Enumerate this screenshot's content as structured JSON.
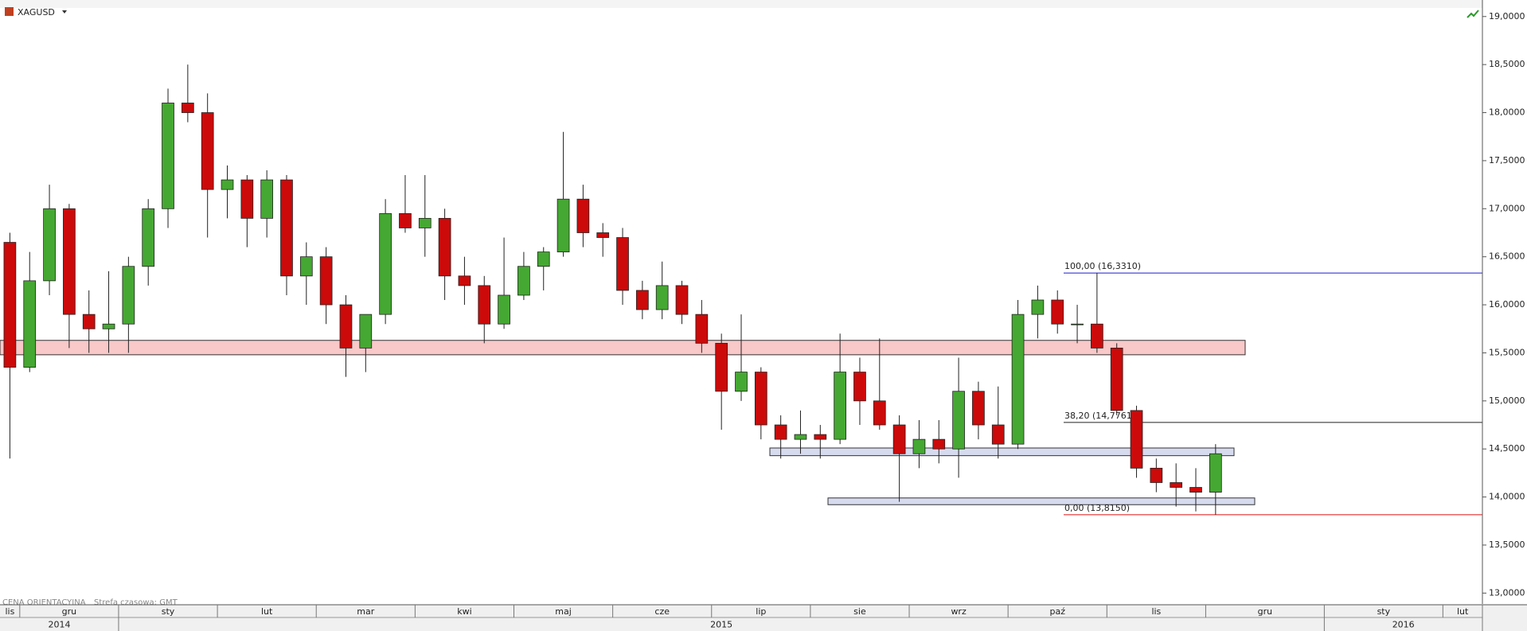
{
  "chart_data": {
    "type": "candlestick",
    "symbol": "XAGUSD",
    "footnote": "CENA ORIENTACYJNA",
    "timezone": "Strefa czasowa: GMT",
    "categories": [
      "lis",
      "gru",
      null,
      null,
      null,
      null,
      "sty",
      null,
      null,
      null,
      null,
      "lut",
      null,
      null,
      null,
      null,
      "mar",
      null,
      null,
      null,
      null,
      "kwi",
      null,
      null,
      null,
      null,
      "maj",
      null,
      null,
      null,
      null,
      "cze",
      null,
      null,
      null,
      null,
      "lip",
      null,
      null,
      null,
      null,
      "sie",
      null,
      null,
      null,
      null,
      "wrz",
      null,
      null,
      null,
      null,
      "paź",
      null,
      null,
      null,
      null,
      "lis",
      null,
      null,
      null,
      null,
      "gru",
      null,
      null,
      null,
      null,
      null,
      "sty",
      null,
      null,
      null,
      null,
      null,
      "lut",
      null
    ],
    "years": [
      "2014",
      null,
      null,
      null,
      null,
      null,
      "2015",
      null,
      null,
      null,
      null,
      null,
      null,
      null,
      null,
      null,
      null,
      null,
      null,
      null,
      null,
      null,
      null,
      null,
      null,
      null,
      null,
      null,
      null,
      null,
      null,
      null,
      null,
      null,
      null,
      null,
      null,
      null,
      null,
      null,
      null,
      null,
      null,
      null,
      null,
      null,
      null,
      null,
      null,
      null,
      null,
      null,
      null,
      null,
      null,
      null,
      null,
      null,
      null,
      null,
      null,
      null,
      null,
      null,
      null,
      null,
      null,
      "2016",
      null,
      null,
      null,
      null,
      null,
      null,
      null
    ],
    "open": [
      16.65,
      15.35,
      16.25,
      17.0,
      15.9,
      15.75,
      15.8,
      16.4,
      17.0,
      18.1,
      18.0,
      17.2,
      17.3,
      16.9,
      17.3,
      16.3,
      16.5,
      16.0,
      15.55,
      15.9,
      16.95,
      16.8,
      16.9,
      16.3,
      16.2,
      15.8,
      16.1,
      16.4,
      16.55,
      17.1,
      16.75,
      16.7,
      16.15,
      15.95,
      16.2,
      15.9,
      15.6,
      15.1,
      15.3,
      14.75,
      14.6,
      14.65,
      14.6,
      15.3,
      15.0,
      14.75,
      14.45,
      14.6,
      14.5,
      15.1,
      14.75,
      14.55,
      15.9,
      16.05,
      15.8,
      15.8,
      15.55,
      14.9,
      14.3,
      14.15,
      14.1,
      14.05,
      null,
      null,
      null,
      null,
      null,
      null,
      null,
      null,
      null,
      null,
      null,
      null,
      null
    ],
    "high": [
      16.75,
      16.55,
      17.25,
      17.05,
      16.15,
      16.35,
      16.5,
      17.1,
      18.25,
      18.5,
      18.2,
      17.45,
      17.35,
      17.4,
      17.35,
      16.65,
      16.6,
      16.1,
      15.9,
      17.1,
      17.35,
      17.35,
      17.0,
      16.5,
      16.3,
      16.7,
      16.55,
      16.6,
      17.8,
      17.25,
      16.85,
      16.8,
      16.25,
      16.45,
      16.25,
      16.05,
      15.7,
      15.9,
      15.35,
      14.85,
      14.9,
      14.75,
      15.7,
      15.45,
      15.65,
      14.85,
      14.8,
      14.8,
      15.45,
      15.2,
      15.15,
      16.05,
      16.2,
      16.15,
      16.0,
      16.331,
      15.6,
      14.95,
      14.4,
      14.35,
      14.3,
      14.55,
      null,
      null,
      null,
      null,
      null,
      null,
      null,
      null,
      null,
      null,
      null,
      null,
      null
    ],
    "low": [
      14.4,
      15.3,
      16.1,
      15.55,
      15.5,
      15.5,
      15.5,
      16.2,
      16.8,
      17.9,
      16.7,
      16.9,
      16.6,
      16.7,
      16.1,
      16.0,
      15.8,
      15.25,
      15.3,
      15.8,
      16.75,
      16.5,
      16.05,
      16.0,
      15.6,
      15.75,
      16.05,
      16.15,
      16.5,
      16.6,
      16.5,
      16.0,
      15.85,
      15.85,
      15.8,
      15.5,
      14.7,
      15.0,
      14.6,
      14.4,
      14.45,
      14.4,
      14.55,
      14.75,
      14.7,
      13.95,
      14.3,
      14.35,
      14.2,
      14.6,
      14.4,
      14.5,
      15.65,
      15.7,
      15.6,
      15.5,
      14.85,
      14.2,
      14.05,
      13.9,
      13.85,
      13.815,
      null,
      null,
      null,
      null,
      null,
      null,
      null,
      null,
      null,
      null,
      null,
      null,
      null
    ],
    "close": [
      15.35,
      16.25,
      17.0,
      15.9,
      15.75,
      15.8,
      16.4,
      17.0,
      18.1,
      18.0,
      17.2,
      17.3,
      16.9,
      17.3,
      16.3,
      16.5,
      16.0,
      15.55,
      15.9,
      16.95,
      16.8,
      16.9,
      16.3,
      16.2,
      15.8,
      16.1,
      16.4,
      16.55,
      17.1,
      16.75,
      16.7,
      16.15,
      15.95,
      16.2,
      15.9,
      15.6,
      15.1,
      15.3,
      14.75,
      14.6,
      14.65,
      14.6,
      15.3,
      15.0,
      14.75,
      14.45,
      14.6,
      14.5,
      15.1,
      14.75,
      14.55,
      15.9,
      16.05,
      15.8,
      15.8,
      15.55,
      14.9,
      14.3,
      14.15,
      14.1,
      14.05,
      14.45,
      null,
      null,
      null,
      null,
      null,
      null,
      null,
      null,
      null,
      null,
      null,
      null,
      null
    ],
    "up_color": "#45a832",
    "down_color": "#cc0a0a",
    "ylim": [
      12.887,
      19.172
    ],
    "yticks": [
      {
        "value": 13.0,
        "label": "13,0000"
      },
      {
        "value": 13.5,
        "label": "13,5000"
      },
      {
        "value": 14.0,
        "label": "14,0000"
      },
      {
        "value": 14.5,
        "label": "14,5000"
      },
      {
        "value": 15.0,
        "label": "15,0000"
      },
      {
        "value": 15.5,
        "label": "15,5000"
      },
      {
        "value": 16.0,
        "label": "16,0000"
      },
      {
        "value": 16.5,
        "label": "16,5000"
      },
      {
        "value": 17.0,
        "label": "17,0000"
      },
      {
        "value": 17.5,
        "label": "17,5000"
      },
      {
        "value": 18.0,
        "label": "18,0000"
      },
      {
        "value": 18.5,
        "label": "18,5000"
      },
      {
        "value": 19.0,
        "label": "19,0000"
      }
    ],
    "grid": false,
    "zones": [
      {
        "from": 15.48,
        "to": 15.63,
        "color": "#f9c8c8"
      },
      {
        "from": 14.43,
        "to": 14.51,
        "color": "#d7dbef"
      },
      {
        "from": 13.92,
        "to": 13.99,
        "color": "#d7dbef"
      }
    ],
    "levels": [
      {
        "value": 16.331,
        "label": "100,00 (16,3310)",
        "color": "#1a1ad0"
      },
      {
        "value": 14.7761,
        "label": "38,20 (14,7761)",
        "color": "#222222"
      },
      {
        "value": 13.815,
        "label": "0,00 (13,8150)",
        "color": "#e01010"
      }
    ]
  }
}
